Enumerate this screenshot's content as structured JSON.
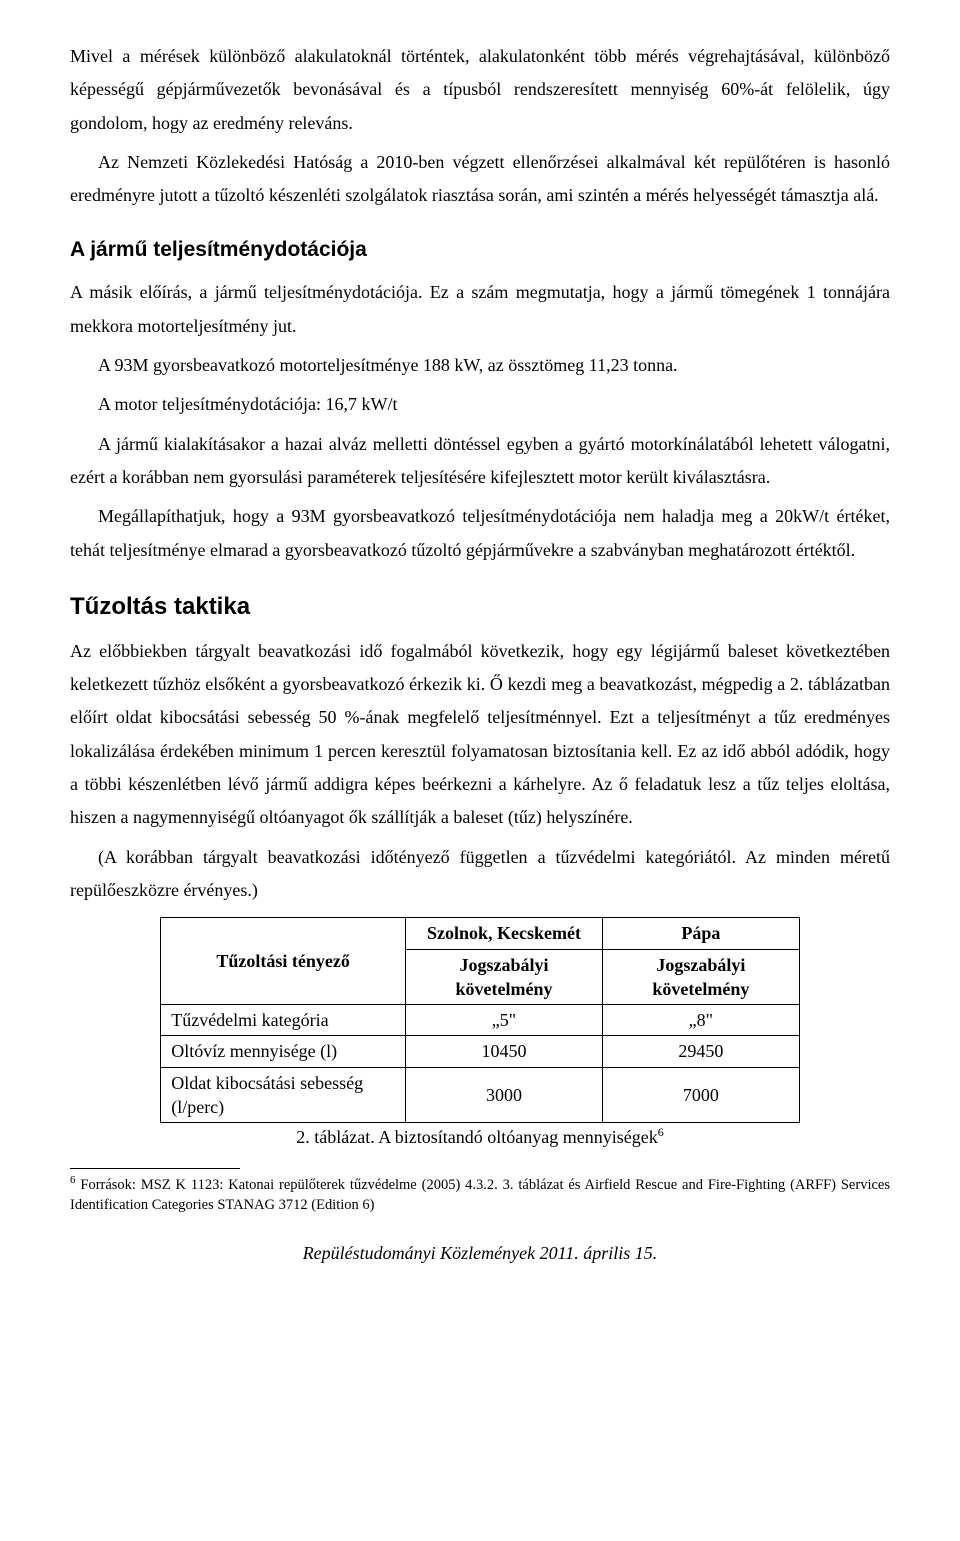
{
  "paragraphs": {
    "p1": "Mivel a mérések különböző alakulatoknál történtek, alakulatonként több mérés végrehajtásával, különböző képességű gépjárművezetők bevonásával és a típusból rendszeresített mennyiség 60%-át felölelik, úgy gondolom, hogy az eredmény releváns.",
    "p2": "Az Nemzeti Közlekedési Hatóság a 2010-ben végzett ellenőrzései alkalmával két repülőtéren is hasonló eredményre jutott a tűzoltó készenléti szolgálatok riasztása során, ami szintén a mérés helyességét támasztja alá.",
    "h_perf": "A jármű teljesítménydotációja",
    "p3": "A másik előírás, a jármű teljesítménydotációja. Ez a szám megmutatja, hogy a jármű tömegének 1 tonnájára mekkora motorteljesítmény jut.",
    "p4": "A 93M gyorsbeavatkozó motorteljesítménye 188 kW, az össztömeg 11,23 tonna.",
    "p5": "A motor teljesítménydotációja: 16,7 kW/t",
    "p6": "A jármű kialakításakor a hazai alváz melletti döntéssel egyben a gyártó motorkínálatából lehetett válogatni, ezért a korábban nem gyorsulási paraméterek teljesítésére kifejlesztett motor került kiválasztásra.",
    "p7": "Megállapíthatjuk, hogy a 93M gyorsbeavatkozó teljesítménydotációja nem haladja meg a 20kW/t értéket, tehát teljesítménye elmarad a gyorsbeavatkozó tűzoltó gépjárművekre a szabványban meghatározott értéktől.",
    "h_tact": "Tűzoltás taktika",
    "p8": "Az előbbiekben tárgyalt beavatkozási idő fogalmából következik, hogy egy légijármű baleset következtében keletkezett tűzhöz elsőként a gyorsbeavatkozó érkezik ki. Ő kezdi meg a beavatkozást, mégpedig a 2. táblázatban előírt oldat kibocsátási sebesség 50 %-ának megfelelő teljesítménnyel. Ezt a teljesítményt a tűz eredményes lokalizálása érdekében minimum 1 percen keresztül folyamatosan biztosítania kell. Ez az idő abból adódik, hogy a többi készenlétben lévő jármű addigra képes beérkezni a kárhelyre. Az ő feladatuk lesz a tűz teljes eloltása, hiszen a nagymennyiségű oltóanyagot ők szállítják a baleset (tűz) helyszínére.",
    "p9": "(A korábban tárgyalt beavatkozási időtényező független a tűzvédelmi kategóriától. Az minden méretű repülőeszközre érvényes.)"
  },
  "table": {
    "header_rowlabel": "Tűzoltási tényező",
    "col1_top": "Szolnok, Kecskemét",
    "col2_top": "Pápa",
    "col1_sub": "Jogszabályi követelmény",
    "col2_sub": "Jogszabályi követelmény",
    "rows": [
      {
        "label": "Tűzvédelmi kategória",
        "v1": "„5\"",
        "v2": "„8\""
      },
      {
        "label": "Oltóvíz mennyisége (l)",
        "v1": "10450",
        "v2": "29450"
      },
      {
        "label": "Oldat kibocsátási sebesség (l/perc)",
        "v1": "3000",
        "v2": "7000"
      }
    ],
    "caption_prefix": "2. táblázat. A biztosítandó oltóanyag mennyiségek",
    "caption_ref": "6"
  },
  "footnote": {
    "ref": "6",
    "text": " Források: MSZ K 1123: Katonai repülőterek tűzvédelme (2005) 4.3.2. 3. táblázat és Airfield Rescue and Fire-Fighting (ARFF) Services Identification Categories STANAG 3712 (Edition 6)"
  },
  "footer": "Repüléstudományi Közlemények 2011. április 15."
}
